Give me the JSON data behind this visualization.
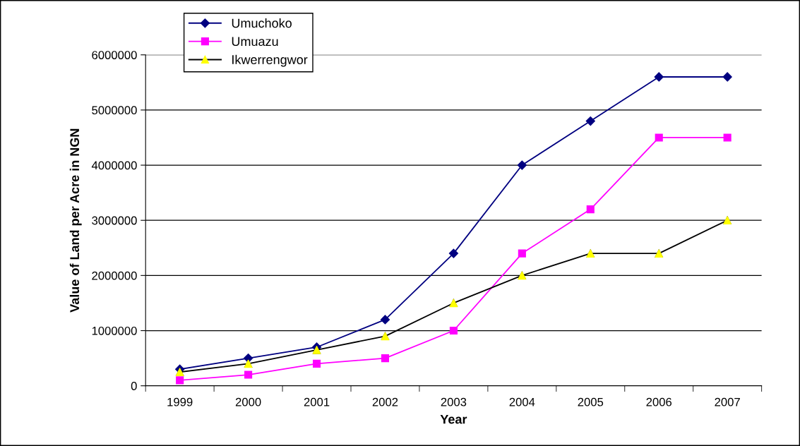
{
  "chart_data": {
    "type": "line",
    "xlabel": "Year",
    "ylabel": "Value of Land per Acre in NGN",
    "categories": [
      "1999",
      "2000",
      "2001",
      "2002",
      "2003",
      "2004",
      "2005",
      "2006",
      "2007"
    ],
    "series": [
      {
        "name": "Umuchoko",
        "color": "#000080",
        "marker": "diamond",
        "values": [
          300000,
          500000,
          700000,
          1200000,
          2400000,
          4000000,
          4800000,
          5600000,
          5600000
        ]
      },
      {
        "name": "Umuazu",
        "color": "#ff00ff",
        "marker": "square",
        "values": [
          100000,
          200000,
          400000,
          500000,
          1000000,
          2400000,
          3200000,
          4500000,
          4500000
        ]
      },
      {
        "name": "Ikwerrengwor",
        "color": "#000000",
        "colors": [
          "#ffff00",
          "#ffff00",
          "#ffff00",
          "#ffff00",
          "#ffff00",
          "#ffff00",
          "#ffff00",
          "#ffff00",
          "#ffff00"
        ],
        "marker": "triangle",
        "values": [
          250000,
          400000,
          650000,
          900000,
          1500000,
          2000000,
          2400000,
          2400000,
          3000000
        ]
      }
    ],
    "ylim": [
      0,
      6000000
    ],
    "yticks": [
      0,
      1000000,
      2000000,
      3000000,
      4000000,
      5000000,
      6000000
    ],
    "grid": "y",
    "legend": "top left",
    "line_style": "solid"
  }
}
